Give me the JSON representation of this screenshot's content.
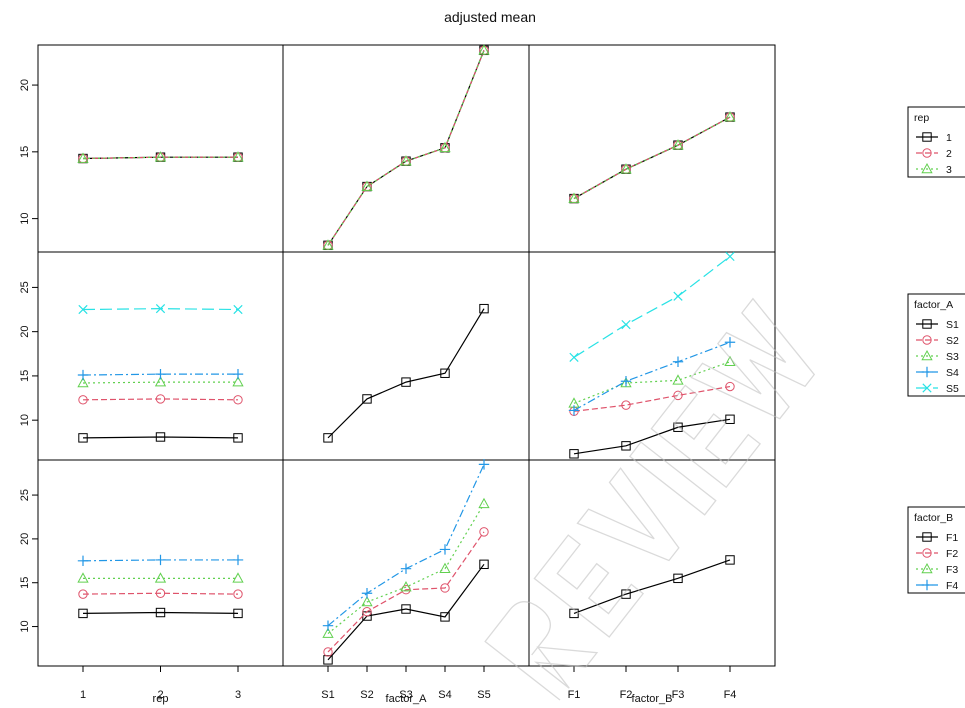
{
  "title": "adjusted mean",
  "factors": [
    {
      "key": "rep",
      "levels": [
        "1",
        "2",
        "3"
      ]
    },
    {
      "key": "factor_A",
      "levels": [
        "S1",
        "S2",
        "S3",
        "S4",
        "S5"
      ]
    },
    {
      "key": "factor_B",
      "levels": [
        "F1",
        "F2",
        "F3",
        "F4"
      ]
    }
  ],
  "xlabels": [
    "rep",
    "factor_A",
    "factor_B"
  ],
  "legends": [
    {
      "title": "rep",
      "entries": [
        "1",
        "2",
        "3"
      ]
    },
    {
      "title": "factor_A",
      "entries": [
        "S1",
        "S2",
        "S3",
        "S4",
        "S5"
      ]
    },
    {
      "title": "factor_B",
      "entries": [
        "F1",
        "F2",
        "F3",
        "F4"
      ]
    }
  ],
  "colors": [
    "#000000",
    "#df536b",
    "#61d04f",
    "#2297e6",
    "#28e2e5"
  ],
  "chart_data": {
    "type": "line",
    "layout": "3x3 interaction plot matrix",
    "rows": [
      {
        "trace_factor": "rep",
        "ylim": [
          7.5,
          23
        ],
        "yticks": [
          10,
          15,
          20
        ],
        "panels": [
          {
            "x_factor": "rep",
            "series": [
              {
                "name": "1",
                "values": [
                  14.5,
                  14.6,
                  14.6
                ]
              },
              {
                "name": "2",
                "values": [
                  14.5,
                  14.6,
                  14.6
                ]
              },
              {
                "name": "3",
                "values": [
                  14.5,
                  14.6,
                  14.6
                ]
              }
            ]
          },
          {
            "x_factor": "factor_A",
            "series": [
              {
                "name": "1",
                "values": [
                  8.0,
                  12.4,
                  14.3,
                  15.3,
                  22.6
                ]
              },
              {
                "name": "2",
                "values": [
                  8.0,
                  12.4,
                  14.3,
                  15.3,
                  22.6
                ]
              },
              {
                "name": "3",
                "values": [
                  8.0,
                  12.4,
                  14.3,
                  15.3,
                  22.6
                ]
              }
            ]
          },
          {
            "x_factor": "factor_B",
            "series": [
              {
                "name": "1",
                "values": [
                  11.5,
                  13.7,
                  15.5,
                  17.6
                ]
              },
              {
                "name": "2",
                "values": [
                  11.5,
                  13.7,
                  15.5,
                  17.6
                ]
              },
              {
                "name": "3",
                "values": [
                  11.5,
                  13.7,
                  15.5,
                  17.6
                ]
              }
            ]
          }
        ]
      },
      {
        "trace_factor": "factor_A",
        "ylim": [
          5.5,
          29
        ],
        "yticks": [
          10,
          15,
          20,
          25
        ],
        "panels": [
          {
            "x_factor": "rep",
            "series": [
              {
                "name": "S1",
                "values": [
                  8.0,
                  8.1,
                  8.0
                ]
              },
              {
                "name": "S2",
                "values": [
                  12.3,
                  12.4,
                  12.3
                ]
              },
              {
                "name": "S3",
                "values": [
                  14.2,
                  14.3,
                  14.3
                ]
              },
              {
                "name": "S4",
                "values": [
                  15.1,
                  15.2,
                  15.2
                ]
              },
              {
                "name": "S5",
                "values": [
                  22.5,
                  22.6,
                  22.5
                ]
              }
            ]
          },
          {
            "x_factor": "factor_A",
            "series": [
              {
                "name": "S1",
                "values": [
                  8.0,
                  12.4,
                  14.3,
                  15.3,
                  22.6
                ]
              }
            ]
          },
          {
            "x_factor": "factor_B",
            "series": [
              {
                "name": "S1",
                "values": [
                  6.2,
                  7.1,
                  9.2,
                  10.1
                ]
              },
              {
                "name": "S2",
                "values": [
                  11.0,
                  11.7,
                  12.8,
                  13.8
                ]
              },
              {
                "name": "S3",
                "values": [
                  11.9,
                  14.2,
                  14.5,
                  16.6
                ]
              },
              {
                "name": "S4",
                "values": [
                  11.1,
                  14.4,
                  16.6,
                  18.8
                ]
              },
              {
                "name": "S5",
                "values": [
                  17.1,
                  20.8,
                  24.0,
                  28.5
                ]
              }
            ]
          }
        ]
      },
      {
        "trace_factor": "factor_B",
        "ylim": [
          5.5,
          29
        ],
        "yticks": [
          10,
          15,
          20,
          25
        ],
        "panels": [
          {
            "x_factor": "rep",
            "series": [
              {
                "name": "F1",
                "values": [
                  11.5,
                  11.6,
                  11.5
                ]
              },
              {
                "name": "F2",
                "values": [
                  13.7,
                  13.8,
                  13.7
                ]
              },
              {
                "name": "F3",
                "values": [
                  15.5,
                  15.5,
                  15.5
                ]
              },
              {
                "name": "F4",
                "values": [
                  17.5,
                  17.6,
                  17.6
                ]
              }
            ]
          },
          {
            "x_factor": "factor_A",
            "series": [
              {
                "name": "F1",
                "values": [
                  6.2,
                  11.2,
                  12.0,
                  11.1,
                  17.1
                ]
              },
              {
                "name": "F2",
                "values": [
                  7.1,
                  11.7,
                  14.2,
                  14.4,
                  20.8
                ]
              },
              {
                "name": "F3",
                "values": [
                  9.2,
                  12.8,
                  14.5,
                  16.6,
                  24.0
                ]
              },
              {
                "name": "F4",
                "values": [
                  10.1,
                  13.8,
                  16.6,
                  18.8,
                  28.5
                ]
              }
            ]
          },
          {
            "x_factor": "factor_B",
            "series": [
              {
                "name": "F1",
                "values": [
                  11.5,
                  13.7,
                  15.5,
                  17.6
                ]
              }
            ]
          }
        ]
      }
    ],
    "grid": false,
    "legend_placement": "right"
  },
  "watermark": "REVIEW"
}
